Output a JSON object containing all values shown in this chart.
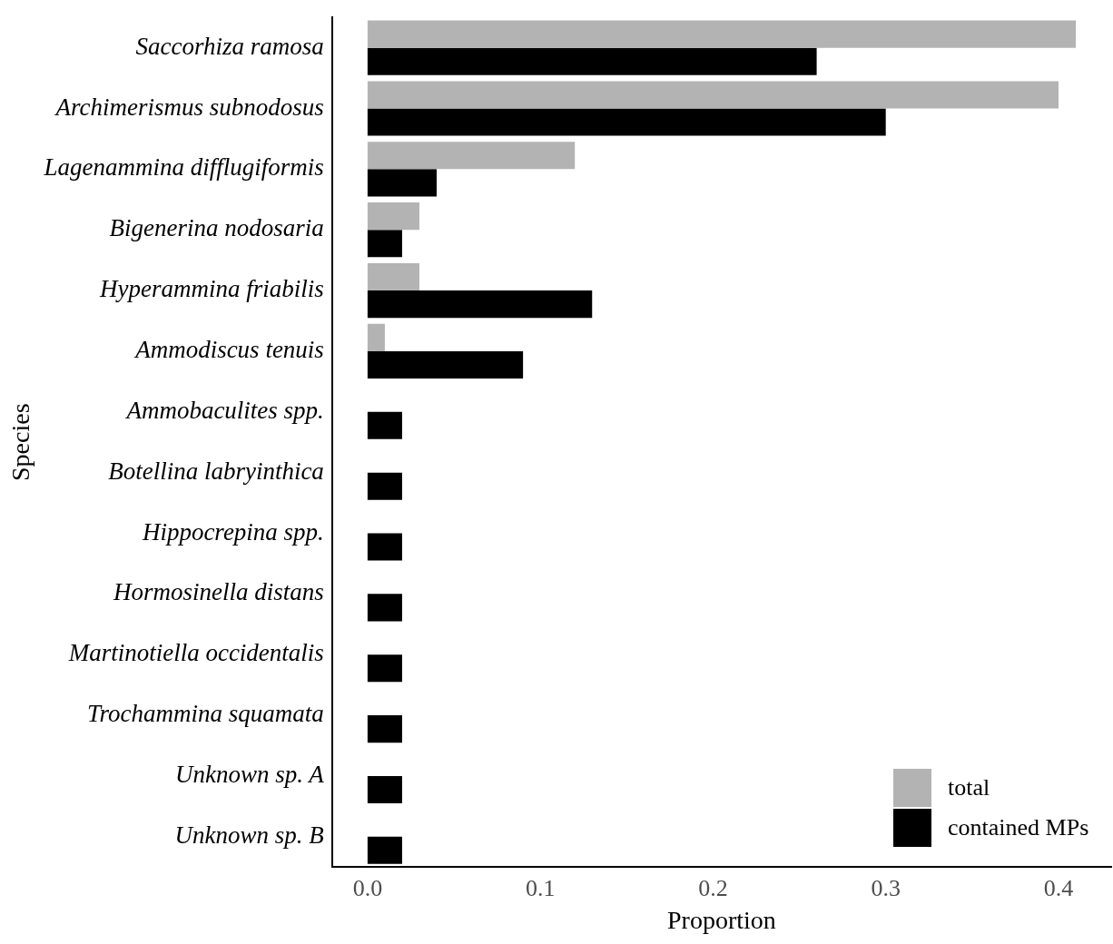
{
  "chart_data": {
    "type": "bar",
    "orientation": "horizontal",
    "xlabel": "Proportion",
    "ylabel": "Species",
    "categories": [
      "Saccorhiza ramosa",
      "Archimerismus subnodosus",
      "Lagenammina difflugiformis",
      "Bigenerina nodosaria",
      "Hyperammina friabilis",
      "Ammodiscus tenuis",
      "Ammobaculites spp.",
      "Botellina labryinthica",
      "Hippocrepina spp.",
      "Hormosinella distans",
      "Martinotiella occidentalis",
      "Trochammina squamata",
      "Unknown sp. A",
      "Unknown sp. B"
    ],
    "series": [
      {
        "name": "total",
        "color": "#b3b3b3",
        "values": [
          0.41,
          0.4,
          0.12,
          0.03,
          0.03,
          0.01,
          null,
          null,
          null,
          null,
          null,
          null,
          null,
          null
        ]
      },
      {
        "name": "contained MPs",
        "color": "#000000",
        "values": [
          0.26,
          0.3,
          0.04,
          0.02,
          0.13,
          0.09,
          0.02,
          0.02,
          0.02,
          0.02,
          0.02,
          0.02,
          0.02,
          0.02
        ]
      }
    ],
    "xlim": [
      -0.0205,
      0.4305
    ],
    "xticks": [
      {
        "value": 0,
        "label": "0.0"
      },
      {
        "value": 0.1,
        "label": "0.1"
      },
      {
        "value": 0.2,
        "label": "0.2"
      },
      {
        "value": 0.3,
        "label": "0.3"
      },
      {
        "value": 0.4,
        "label": "0.4"
      }
    ],
    "grid": false,
    "legend": "bottom right"
  }
}
